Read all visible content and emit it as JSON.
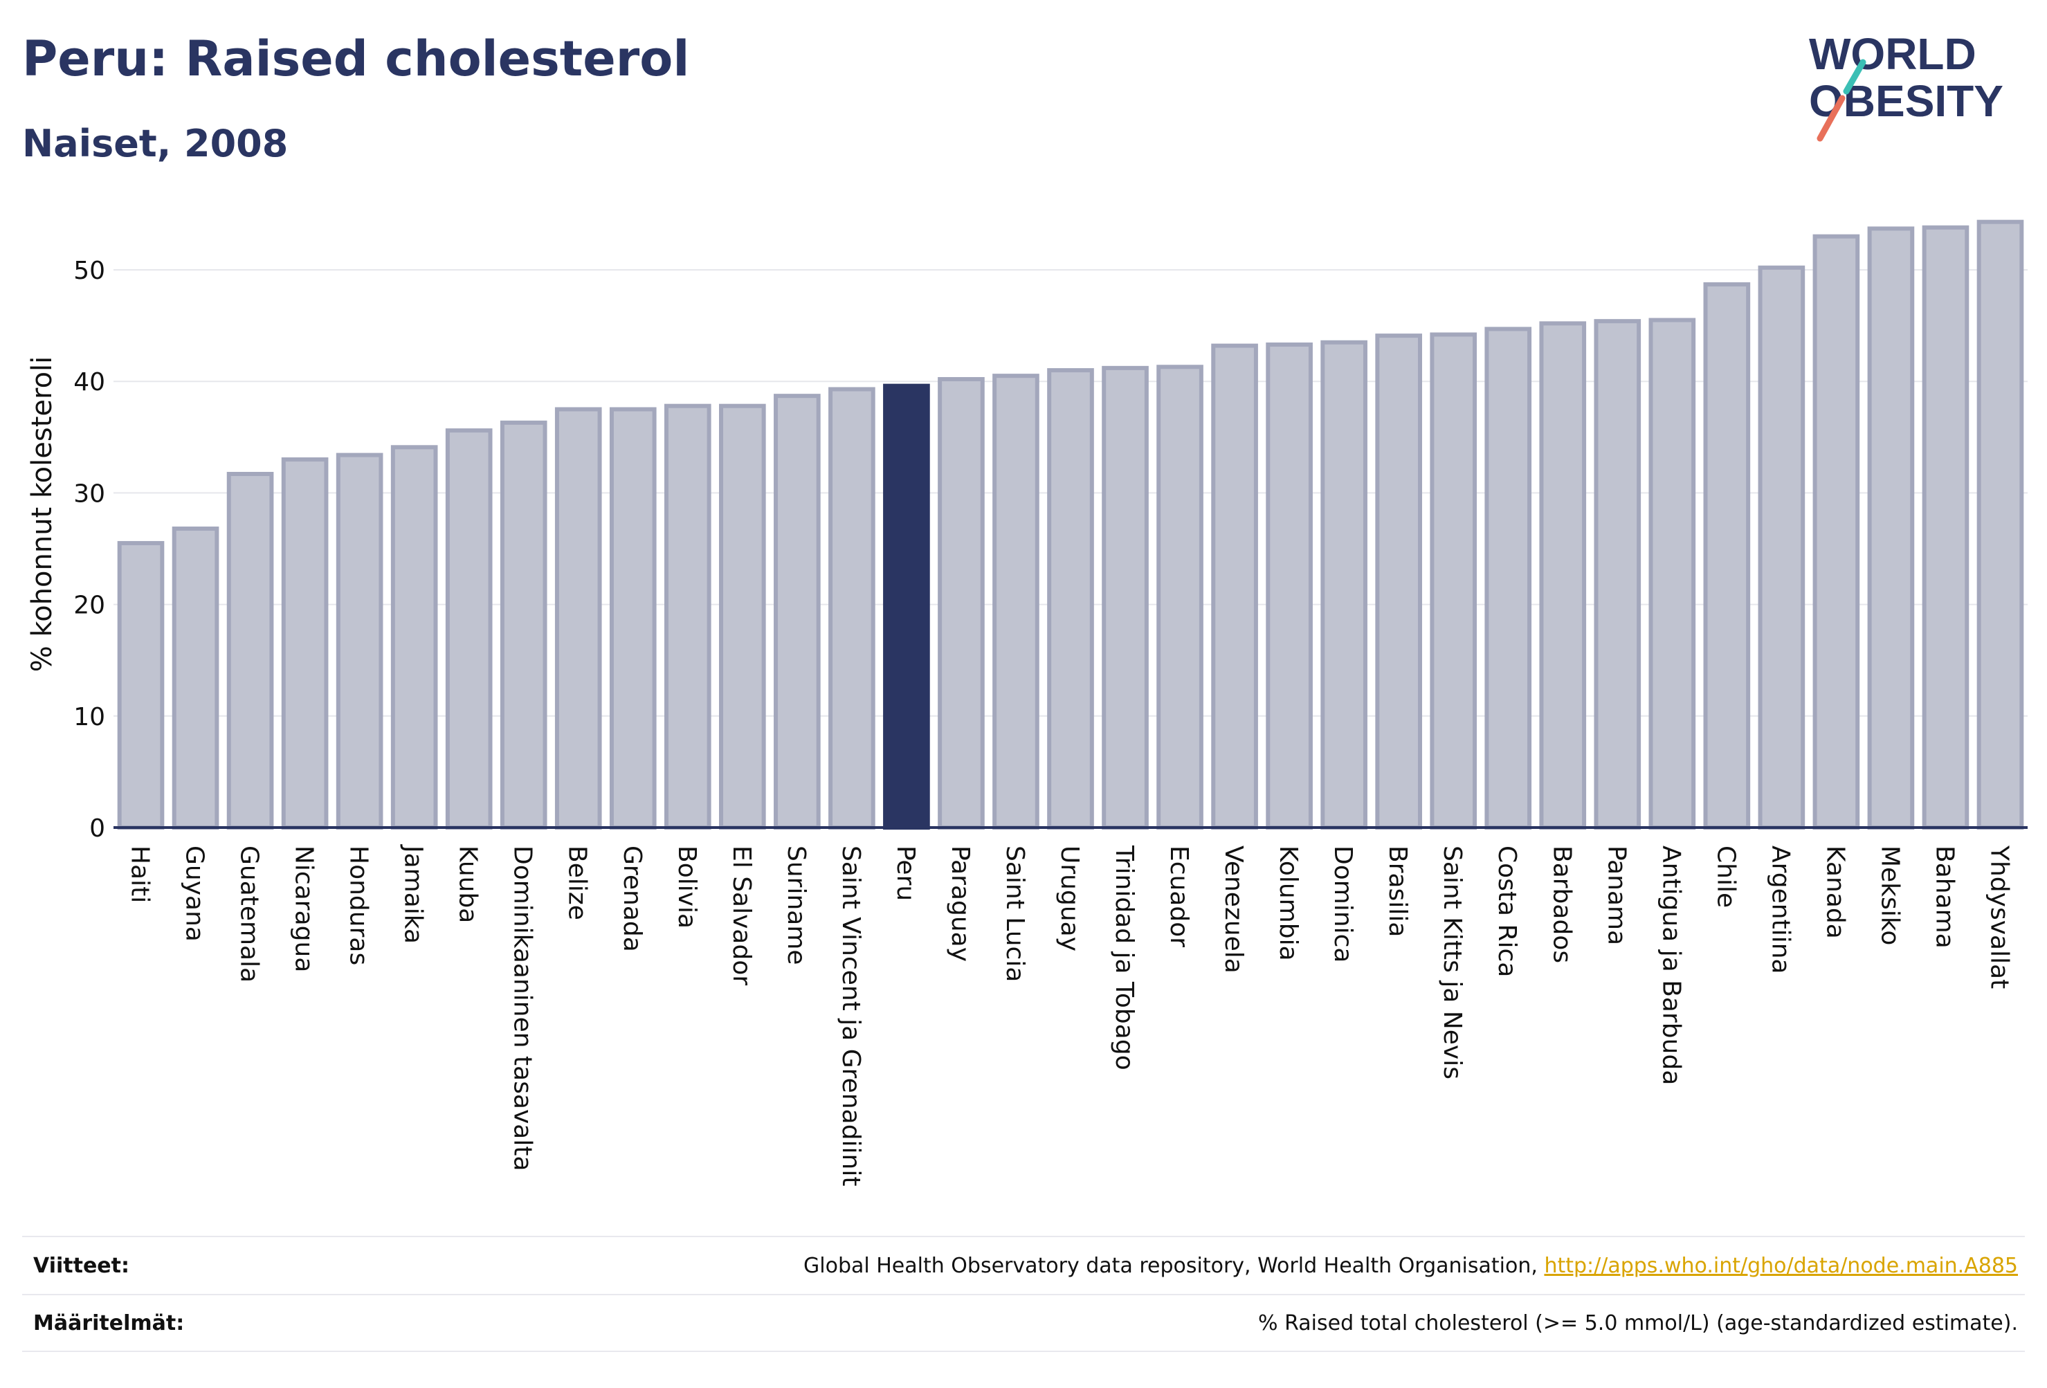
{
  "header": {
    "title": "Peru: Raised cholesterol",
    "subtitle": "Naiset, 2008"
  },
  "logo": {
    "line1": "WORLD",
    "line2": "OBESITY"
  },
  "footer": {
    "sources_label": "Viitteet:",
    "sources_text": "Global Health Observatory data repository, World Health Organisation, ",
    "sources_link": "http://apps.who.int/gho/data/node.main.A885",
    "definitions_label": "Määritelmät:",
    "definitions_text": "% Raised total cholesterol (>= 5.0 mmol/L) (age-standardized estimate)."
  },
  "colors": {
    "bar_fill": "#c0c3d0",
    "bar_stroke": "#a3a7bc",
    "highlight": "#2a3562",
    "text": "#2a3562",
    "link": "#d9a400"
  },
  "chart_data": {
    "type": "bar",
    "ylabel": "% kohonnut kolesteroli",
    "ylim": [
      0,
      55
    ],
    "yticks": [
      0,
      10,
      20,
      30,
      40,
      50
    ],
    "grid": true,
    "highlight": "Peru",
    "categories": [
      "Haiti",
      "Guyana",
      "Guatemala",
      "Nicaragua",
      "Honduras",
      "Jamaika",
      "Kuuba",
      "Dominikaaninen tasavalta",
      "Belize",
      "Grenada",
      "Bolivia",
      "El Salvador",
      "Suriname",
      "Saint Vincent ja Grenadiinit",
      "Peru",
      "Paraguay",
      "Saint Lucia",
      "Uruguay",
      "Trinidad ja Tobago",
      "Ecuador",
      "Venezuela",
      "Kolumbia",
      "Dominica",
      "Brasilia",
      "Saint Kitts ja Nevis",
      "Costa Rica",
      "Barbados",
      "Panama",
      "Antigua ja Barbuda",
      "Chile",
      "Argentiina",
      "Kanada",
      "Meksiko",
      "Bahama",
      "Yhdysvallat"
    ],
    "values": [
      25.5,
      26.8,
      31.7,
      33.0,
      33.4,
      34.1,
      35.6,
      36.3,
      37.5,
      37.5,
      37.8,
      37.8,
      38.7,
      39.3,
      39.6,
      40.2,
      40.5,
      41.0,
      41.2,
      41.3,
      43.2,
      43.3,
      43.5,
      44.1,
      44.2,
      44.7,
      45.2,
      45.4,
      45.5,
      48.7,
      50.2,
      53.0,
      53.7,
      53.8,
      54.3
    ]
  }
}
